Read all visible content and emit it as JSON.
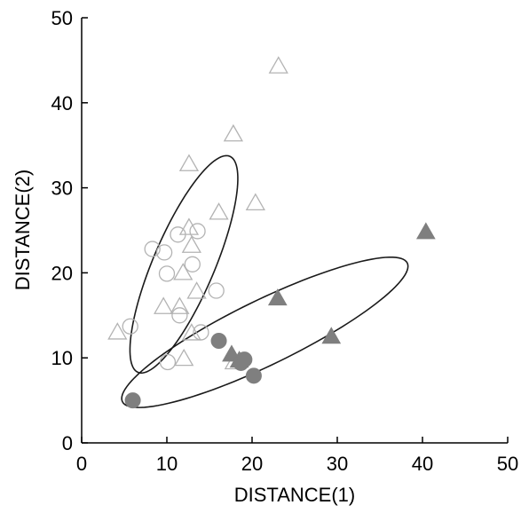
{
  "chart_data": {
    "type": "scatter",
    "title": "",
    "xlabel": "DISTANCE(1)",
    "ylabel": "DISTANCE(2)",
    "xlim": [
      0,
      50
    ],
    "ylim": [
      0,
      50
    ],
    "xticks": [
      0,
      10,
      20,
      30,
      40,
      50
    ],
    "yticks": [
      0,
      10,
      20,
      30,
      40,
      50
    ],
    "grid": false,
    "series": [
      {
        "marker": "open-triangle",
        "color": "#b3b3b3",
        "points": [
          [
            4.2,
            13.0
          ],
          [
            9.6,
            16.0
          ],
          [
            11.5,
            16.0
          ],
          [
            11.9,
            20.0
          ],
          [
            12.0,
            9.9
          ],
          [
            12.9,
            12.9
          ],
          [
            13.5,
            17.8
          ],
          [
            12.6,
            25.3
          ],
          [
            12.9,
            23.2
          ],
          [
            12.6,
            32.8
          ],
          [
            16.1,
            27.1
          ],
          [
            17.8,
            36.3
          ],
          [
            20.4,
            28.2
          ],
          [
            23.1,
            44.3
          ],
          [
            17.9,
            9.5
          ]
        ]
      },
      {
        "marker": "open-circle",
        "color": "#b3b3b3",
        "points": [
          [
            5.7,
            13.7
          ],
          [
            8.3,
            22.8
          ],
          [
            9.7,
            22.4
          ],
          [
            10.0,
            19.9
          ],
          [
            10.1,
            9.5
          ],
          [
            11.5,
            15.0
          ],
          [
            11.3,
            24.5
          ],
          [
            13.0,
            21.0
          ],
          [
            13.6,
            24.9
          ],
          [
            14.0,
            13.0
          ],
          [
            15.8,
            17.9
          ]
        ]
      },
      {
        "marker": "filled-triangle",
        "color": "#7f7f7f",
        "points": [
          [
            17.6,
            10.4
          ],
          [
            18.5,
            9.7
          ],
          [
            23.0,
            17.0
          ],
          [
            29.3,
            12.5
          ],
          [
            40.4,
            24.8
          ]
        ]
      },
      {
        "marker": "filled-circle",
        "color": "#7f7f7f",
        "points": [
          [
            6.0,
            5.0
          ],
          [
            16.1,
            12.0
          ],
          [
            18.7,
            9.4
          ],
          [
            19.1,
            9.8
          ],
          [
            20.2,
            7.9
          ]
        ]
      }
    ],
    "ellipses": [
      {
        "cx": 12.0,
        "cy": 21.0,
        "rx": 13.8,
        "ry": 3.6,
        "angle_deg": 67
      },
      {
        "cx": 21.5,
        "cy": 13.0,
        "rx": 18.6,
        "ry": 3.8,
        "angle_deg": 26
      }
    ]
  }
}
